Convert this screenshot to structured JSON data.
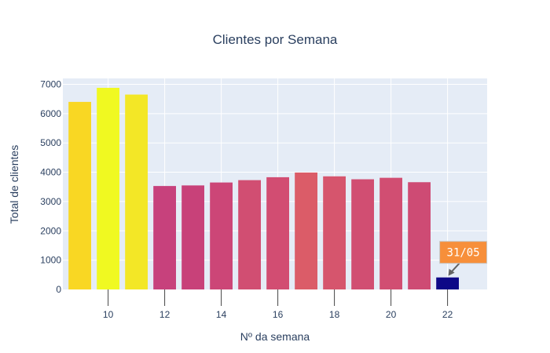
{
  "chart_data": {
    "type": "bar",
    "title": "Clientes por Semana",
    "xlabel": "Nº da semana",
    "ylabel": "Total de clientes",
    "x": [
      9,
      10,
      11,
      12,
      13,
      14,
      15,
      16,
      17,
      18,
      19,
      20,
      21,
      22
    ],
    "values": [
      6400,
      6880,
      6650,
      3530,
      3550,
      3650,
      3730,
      3830,
      3990,
      3860,
      3760,
      3810,
      3660,
      410
    ],
    "bar_colors": [
      "#f9d723",
      "#f0f921",
      "#f3e726",
      "#c7417c",
      "#c84179",
      "#cc4677",
      "#d14e72",
      "#d24d72",
      "#db5c68",
      "#d6556d",
      "#d14e72",
      "#d14e72",
      "#ce4b74",
      "#0d0887"
    ],
    "xlim": [
      8.4,
      23.4
    ],
    "ylim": [
      0,
      7200
    ],
    "xticks": [
      10,
      12,
      14,
      16,
      18,
      20,
      22
    ],
    "yticks": [
      0,
      1000,
      2000,
      3000,
      4000,
      5000,
      6000,
      7000
    ],
    "grid": true,
    "plot_bg": "#e5ecf6",
    "annotation": {
      "text": "31/05",
      "x": 22,
      "y": 410,
      "bg": "#f78f3a",
      "border": "#c7c7c7",
      "arrow": "#636363"
    }
  }
}
